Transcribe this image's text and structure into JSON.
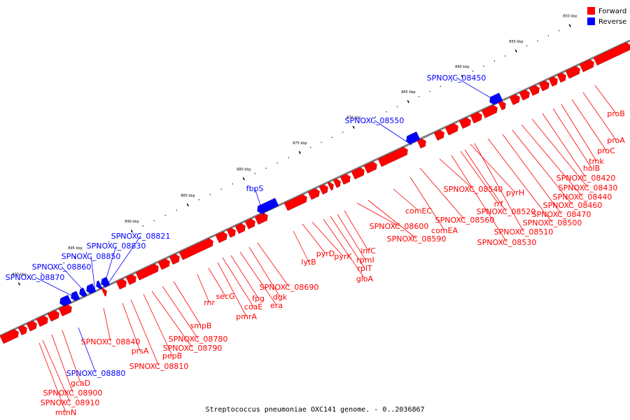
{
  "legend": {
    "forward": {
      "label": "Forward",
      "color": "#ff0000"
    },
    "reverse": {
      "label": "Reverse",
      "color": "#0000ff"
    }
  },
  "caption": "Streptococcus pneumoniae OXC141 genome. - 0..2036867",
  "scale_ticks": [
    "850 kbp",
    "855 kbp",
    "860 kbp",
    "865 kbp",
    "870 kbp",
    "875 kbp",
    "880 kbp",
    "885 kbp",
    "890 kbp",
    "895 kbp",
    "900 kbp"
  ],
  "reverse_labels": [
    "SPNOXC_08450",
    "SPNOXC_08550",
    "fbpS",
    "SPNOXC_08821",
    "SPNOXC_08830",
    "SPNOXC_08850",
    "SPNOXC_08860",
    "SPNOXC_08870",
    "SPNOXC_08880"
  ],
  "forward_labels": [
    "proB",
    "proA",
    "proC",
    "tmk",
    "holB",
    "SPNOXC_08420",
    "SPNOXC_08430",
    "SPNOXC_08440",
    "SPNOXC_08460",
    "SPNOXC_08470",
    "SPNOXC_08500",
    "SPNOXC_08510",
    "SPNOXC_08520",
    "SPNOXC_08530",
    "SPNOXC_08540",
    "SPNOXC_08560",
    "pyrH",
    "rrf",
    "comEA",
    "comEC",
    "SPNOXC_08590",
    "SPNOXC_08600",
    "infC",
    "rpmI",
    "rplT",
    "gloA",
    "pyrK",
    "pyrD",
    "lytB",
    "SPNOXC_08690",
    "dgk",
    "era",
    "fpg",
    "coaE",
    "pmrA",
    "secG",
    "rnr",
    "smpB",
    "SPNOXC_08780",
    "SPNOXC_08790",
    "pepB",
    "SPNOXC_08810",
    "prsA",
    "SPNOXC_08840",
    "gcaD",
    "SPNOXC_08900",
    "SPNOXC_08910",
    "mtnN"
  ]
}
